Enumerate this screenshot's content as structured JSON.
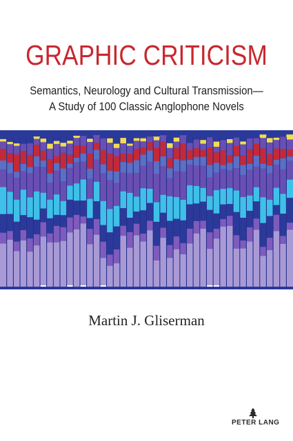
{
  "book": {
    "title": "GRAPHIC CRITICISM",
    "subtitle_line1": "Semantics, Neurology and Cultural Transmission—",
    "subtitle_line2": "A Study of 100 Classic Anglophone Novels",
    "author": "Martin J. Gliserman",
    "publisher": "PETER LANG"
  },
  "colors": {
    "title": "#c8282f",
    "band_dark_blue": "#2b3a9a",
    "band_purple": "#6a4fb3",
    "band_red": "#c22a3a",
    "band_cyan": "#3fc0e8",
    "band_lavender": "#a99ad6",
    "band_yellow": "#f3dd52"
  },
  "icons": {
    "publisher_logo": "peter-lang-logo-icon"
  }
}
